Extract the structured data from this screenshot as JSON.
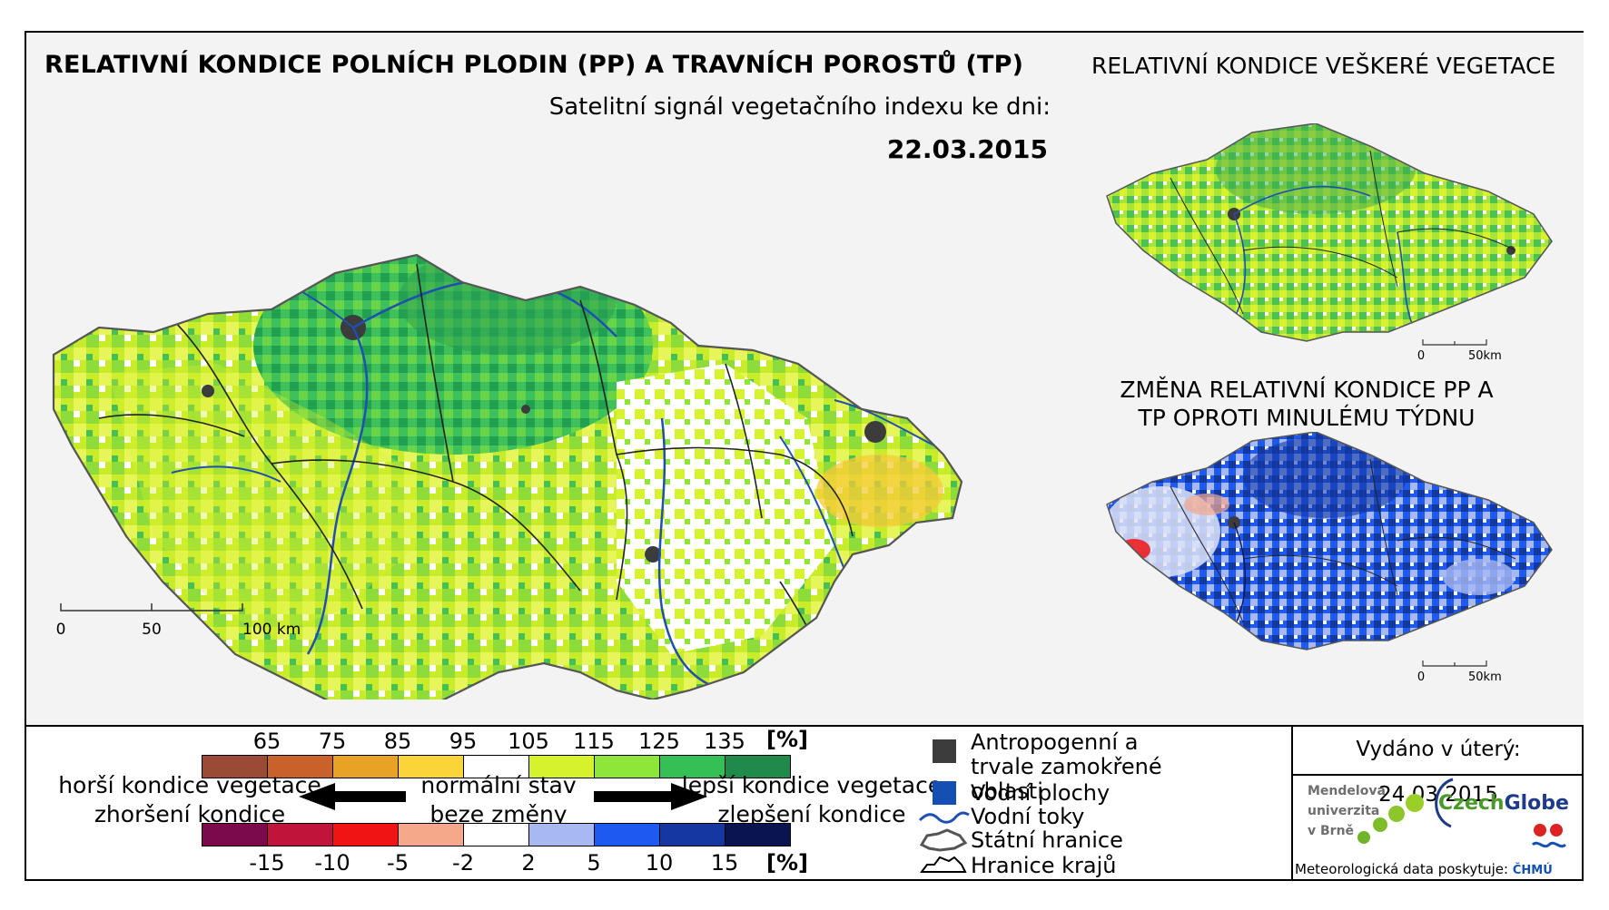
{
  "title": "RELATIVNÍ KONDICE POLNÍCH PLODIN (PP) A TRAVNÍCH POROSTŮ (TP)",
  "subtitle": "Satelitní signál vegetačního indexu ke dni:",
  "date": "22.03.2015",
  "inset_vegetation_title": "RELATIVNÍ KONDICE VEŠKERÉ VEGETACE",
  "inset_change_title": "ZMĚNA RELATIVNÍ KONDICE PP A TP OPROTI MINULÉMU TÝDNU",
  "main_scale": {
    "labels": [
      "0",
      "50",
      "100 km"
    ]
  },
  "inset_scale": {
    "labels": [
      "0",
      "50km"
    ]
  },
  "condition_legend": {
    "labels": [
      "65",
      "75",
      "85",
      "95",
      "105",
      "115",
      "125",
      "135"
    ],
    "unit": "[%]",
    "colors": [
      "#9a4a35",
      "#c8622a",
      "#e8a326",
      "#fbd43a",
      "#ffffff",
      "#d6f22a",
      "#8ee63a",
      "#35c055",
      "#1f8a4a"
    ]
  },
  "change_legend": {
    "labels": [
      "-15",
      "-10",
      "-5",
      "-2",
      "2",
      "5",
      "10",
      "15"
    ],
    "unit": "[%]",
    "colors": [
      "#7a0a4a",
      "#c0143a",
      "#f01414",
      "#f5a88a",
      "#ffffff",
      "#a8b8f0",
      "#1e5af0",
      "#1438a0",
      "#0a1450"
    ]
  },
  "direction_labels": {
    "worse_1": "horší kondice vegetace",
    "worse_2": "zhoršení kondice",
    "normal_1": "normální stav",
    "normal_2": "beze změny",
    "better_1": "lepší kondice vegetace",
    "better_2": "zlepšení kondice"
  },
  "map_key": {
    "anthropogenic": "Antropogenní a trvale zamokřené oblasti",
    "water_areas": "Vodní plochy",
    "rivers": "Vodní toky",
    "state_border": "Státní hranice",
    "region_border": "Hranice krajů"
  },
  "issued": "Vydáno v úterý: 24.03.2015",
  "logos": {
    "mendel": [
      "Mendelova",
      "univerzita",
      "v Brně"
    ],
    "czechglobe_a": "Czech",
    "czechglobe_b": "Globe",
    "meteo_credit": "Meteorologická data poskytuje:",
    "chmu": "ČHMÚ"
  },
  "colors": {
    "anthropogenic": "#3c3c3c",
    "water": "#1450b4",
    "river": "#1f4fb0",
    "border": "#222222"
  }
}
